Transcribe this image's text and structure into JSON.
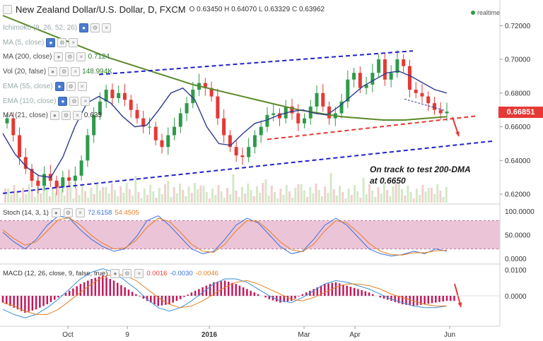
{
  "header": {
    "symbol_title": "New Zealand Dollar/U.S. Dollar, D, FXCM",
    "ohlc": {
      "o_label": "O",
      "o": "0.63450",
      "h_label": "H",
      "h": "0.64070",
      "l_label": "L",
      "l": "0.63329",
      "c_label": "C",
      "c": "0.63962"
    },
    "realtime_label": "realtime"
  },
  "indicators": [
    {
      "label": "Ichimoku (9, 26, 52, 26)",
      "value": ""
    },
    {
      "label": "MA (5, close)",
      "value": ""
    },
    {
      "label": "MA (200, close)",
      "value": "0.7124"
    },
    {
      "label": "Vol (20, false)",
      "value": "148.994K"
    },
    {
      "label": "EMA (55, close)",
      "value": ""
    },
    {
      "label": "EMA (110, close)",
      "value": ""
    },
    {
      "label": "MA (21, close)",
      "value": "0.633"
    }
  ],
  "last_price_tag": "0.66851",
  "annotation": {
    "line1": "On track to test 200-DMA",
    "line2": "at 0.6650"
  },
  "stoch": {
    "label": "Stoch (14, 3, 1)",
    "k": "72.6158",
    "d": "54.4505"
  },
  "macd": {
    "label": "MACD (12, 26, close, 9, false, true)",
    "hist": "0.0016",
    "macd": "-0.0030",
    "signal": "-0.0046"
  },
  "colors": {
    "bull": "#2e9b4a",
    "bear": "#e53935",
    "ma200": "#5a8a2a",
    "ma21": "#2d3a8c",
    "channel": "#2222cc",
    "support": "#e53935",
    "stoch_band": "#ecc4d8",
    "stoch_k": "#3b6fd6",
    "stoch_d": "#e67e22",
    "macd_line": "#3b8fd6",
    "macd_signal": "#e67e22",
    "macd_hist": "#c2185b"
  },
  "chart_data": {
    "type": "line",
    "title": "New Zealand Dollar/U.S. Dollar, D, FXCM",
    "x_ticks": [
      "Oct",
      "9",
      "2016",
      "Mar",
      "Apr",
      "Jun"
    ],
    "price_axis": {
      "ticks": [
        "0.72000",
        "0.70000",
        "0.68000",
        "0.66000",
        "0.64000",
        "0.62000"
      ],
      "ylim": [
        0.615,
        0.726
      ]
    },
    "stoch_axis": {
      "ticks": [
        "100.0000",
        "50.0000",
        "0.0000"
      ]
    },
    "macd_axis": {
      "ticks": [
        "0.0100",
        "0.0000"
      ]
    },
    "close_series": [
      0.665,
      0.655,
      0.642,
      0.635,
      0.628,
      0.625,
      0.632,
      0.628,
      0.624,
      0.63,
      0.628,
      0.631,
      0.64,
      0.655,
      0.667,
      0.675,
      0.682,
      0.677,
      0.68,
      0.676,
      0.67,
      0.665,
      0.66,
      0.66,
      0.652,
      0.648,
      0.655,
      0.66,
      0.668,
      0.674,
      0.682,
      0.686,
      0.683,
      0.678,
      0.665,
      0.655,
      0.648,
      0.643,
      0.642,
      0.648,
      0.655,
      0.66,
      0.667,
      0.668,
      0.665,
      0.672,
      0.668,
      0.662,
      0.665,
      0.672,
      0.68,
      0.672,
      0.665,
      0.668,
      0.675,
      0.688,
      0.692,
      0.683,
      0.685,
      0.692,
      0.7,
      0.688,
      0.692,
      0.7,
      0.696,
      0.682,
      0.68,
      0.678,
      0.674,
      0.67,
      0.668,
      0.669
    ],
    "ma200_series": [
      0.726,
      0.721,
      0.716,
      0.711,
      0.706,
      0.701,
      0.697,
      0.693,
      0.689,
      0.685,
      0.682,
      0.679,
      0.676,
      0.673,
      0.67,
      0.668,
      0.666,
      0.665,
      0.664,
      0.664,
      0.665,
      0.666
    ],
    "ma21_series": [
      0.656,
      0.644,
      0.636,
      0.631,
      0.63,
      0.642,
      0.66,
      0.674,
      0.678,
      0.674,
      0.666,
      0.66,
      0.661,
      0.67,
      0.68,
      0.683,
      0.676,
      0.66,
      0.65,
      0.649,
      0.656,
      0.662,
      0.664,
      0.667,
      0.669,
      0.67,
      0.668,
      0.667,
      0.672,
      0.678,
      0.684,
      0.688,
      0.692,
      0.693,
      0.69,
      0.686,
      0.682,
      0.68
    ],
    "stoch_k": [
      55,
      35,
      20,
      40,
      70,
      90,
      85,
      60,
      40,
      25,
      15,
      20,
      45,
      80,
      90,
      70,
      45,
      20,
      10,
      15,
      40,
      70,
      85,
      75,
      50,
      25,
      10,
      15,
      40,
      70,
      85,
      70,
      45,
      20,
      10,
      5,
      8,
      15,
      10,
      20,
      15
    ],
    "stoch_d": [
      60,
      42,
      28,
      35,
      58,
      82,
      86,
      70,
      48,
      32,
      20,
      22,
      38,
      66,
      85,
      78,
      55,
      30,
      15,
      13,
      30,
      58,
      80,
      78,
      58,
      35,
      18,
      14,
      30,
      58,
      80,
      75,
      55,
      32,
      15,
      8,
      7,
      12,
      12,
      16,
      17
    ],
    "macd_hist": [
      -4,
      -7,
      -10,
      -8,
      -5,
      -1,
      3,
      7,
      10,
      12,
      9,
      5,
      1,
      -3,
      -6,
      -5,
      -2,
      2,
      5,
      8,
      9,
      7,
      4,
      1,
      -2,
      -4,
      -3,
      1,
      4,
      7,
      8,
      6,
      4,
      2,
      -1,
      -3,
      -5,
      -6,
      -5,
      -4,
      -3
    ],
    "macd_line": [
      -8,
      -11,
      -13,
      -11,
      -7,
      -2,
      4,
      10,
      14,
      16,
      14,
      9,
      4,
      -2,
      -7,
      -9,
      -7,
      -3,
      2,
      7,
      10,
      10,
      8,
      4,
      0,
      -3,
      -4,
      -1,
      3,
      7,
      9,
      8,
      6,
      4,
      1,
      -2,
      -4,
      -6,
      -7,
      -7,
      -6
    ],
    "macd_signal": [
      -4,
      -6,
      -9,
      -11,
      -11,
      -8,
      -3,
      2,
      7,
      11,
      13,
      12,
      9,
      4,
      -1,
      -5,
      -7,
      -6,
      -3,
      1,
      5,
      8,
      9,
      7,
      4,
      1,
      -2,
      -3,
      -1,
      2,
      5,
      7,
      7,
      6,
      4,
      1,
      -1,
      -3,
      -5,
      -6,
      -6
    ]
  }
}
